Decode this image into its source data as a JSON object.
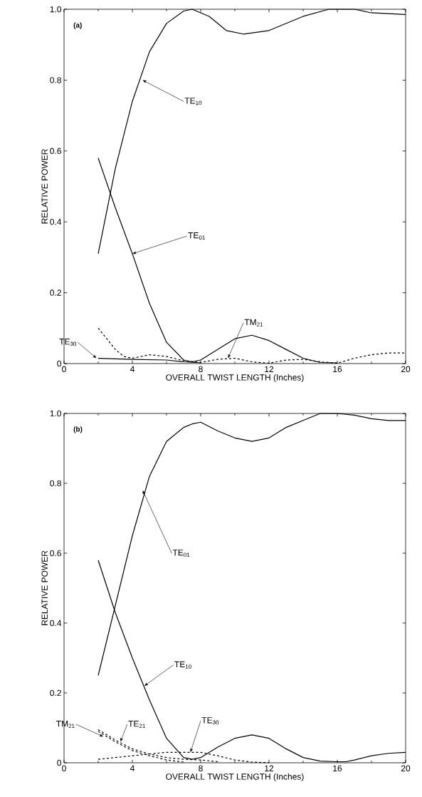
{
  "chart_data": [
    {
      "type": "line",
      "xlabel": "OVERALL TWIST LENGTH (Inches)",
      "ylabel": "RELATIVE POWER",
      "xlim": [
        0,
        20
      ],
      "ylim": [
        0,
        1.0
      ],
      "xticks": [
        0,
        4,
        8,
        12,
        16,
        20
      ],
      "yticks": [
        0,
        {
          "value": 0.2,
          "label": "0.2"
        },
        {
          "value": 0.4,
          "label": "0.4"
        },
        {
          "value": 0.6,
          "label": "0.6"
        },
        {
          "value": 0.8,
          "label": "0.8"
        },
        {
          "value": 1.0,
          "label": "1.0"
        }
      ],
      "series": [
        {
          "color": "#000000",
          "line_style": "solid",
          "x": [
            2,
            3,
            4,
            5,
            6,
            7,
            7.5,
            8.5,
            9.5,
            10.5,
            12,
            14,
            15.5,
            17,
            18,
            20
          ],
          "values": [
            0.31,
            0.55,
            0.74,
            0.88,
            0.96,
            0.995,
            1.0,
            0.98,
            0.94,
            0.93,
            0.94,
            0.98,
            1.0,
            1.0,
            0.99,
            0.985
          ]
        },
        {
          "color": "#000000",
          "line_style": "solid",
          "x": [
            2,
            3,
            4,
            5,
            6,
            7,
            7.5,
            8,
            9,
            10,
            11,
            12,
            13,
            14,
            15,
            16
          ],
          "values": [
            0.58,
            0.44,
            0.31,
            0.17,
            0.06,
            0.01,
            0.005,
            0.01,
            0.04,
            0.07,
            0.08,
            0.065,
            0.04,
            0.015,
            0.003,
            0.002
          ]
        },
        {
          "color": "#000000",
          "line_style": "dashed",
          "x": [
            2,
            2.5,
            3,
            3.5,
            4,
            5,
            6,
            7,
            8,
            9,
            10,
            11,
            12,
            13,
            14,
            15,
            16,
            17,
            18,
            19,
            20
          ],
          "values": [
            0.1,
            0.07,
            0.04,
            0.02,
            0.015,
            0.025,
            0.02,
            0.008,
            0.003,
            0.012,
            0.015,
            0.005,
            0.001,
            0.01,
            0.012,
            0.005,
            0.001,
            0.015,
            0.025,
            0.03,
            0.03
          ]
        },
        {
          "color": "#000000",
          "line_style": "solid",
          "x": [
            2,
            4,
            6,
            7,
            8
          ],
          "values": [
            0.015,
            0.012,
            0.01,
            0.005,
            0.002
          ]
        }
      ],
      "annotations": [
        "(a)",
        {
          "text": "TE$_{10}$",
          "x": 4.6,
          "y": 0.8
        },
        {
          "text": "TE$_{01}$",
          "x": 4.0,
          "y": 0.31
        },
        {
          "text": "TM$_{21}$",
          "x": 9.6,
          "y": 0.015
        },
        {
          "text": "TE$_{30}$",
          "x": 1.9,
          "y": 0.015
        }
      ]
    },
    {
      "type": "line",
      "xlabel": "OVERALL TWIST LENGTH (Inches)",
      "ylabel": "RELATIVE POWER",
      "xlim": [
        0,
        20
      ],
      "ylim": [
        0,
        1.0
      ],
      "xticks": [
        0,
        4,
        8,
        12,
        16,
        20
      ],
      "yticks": [
        0,
        {
          "value": 0.2,
          "label": "0.2"
        },
        {
          "value": 0.4,
          "label": "0.4"
        },
        {
          "value": 0.6,
          "label": "0.6"
        },
        {
          "value": 0.8,
          "label": "0.8"
        },
        {
          "value": 1.0,
          "label": "1.0"
        }
      ],
      "series": [
        {
          "color": "#000000",
          "line_style": "solid",
          "x": [
            2,
            3,
            4,
            5,
            6,
            7,
            7.5,
            8,
            9,
            10,
            11,
            12,
            13,
            14,
            15,
            16,
            17,
            18,
            19,
            20
          ],
          "values": [
            0.25,
            0.45,
            0.65,
            0.82,
            0.92,
            0.96,
            0.97,
            0.975,
            0.95,
            0.93,
            0.92,
            0.93,
            0.96,
            0.98,
            1.0,
            1.0,
            0.995,
            0.985,
            0.98,
            0.98
          ]
        },
        {
          "color": "#000000",
          "line_style": "solid",
          "x": [
            2,
            3,
            4,
            5,
            6,
            7,
            7.5,
            8,
            9,
            10,
            11,
            12,
            13,
            14,
            15,
            16,
            16.5,
            17,
            18,
            19,
            20
          ],
          "values": [
            0.58,
            0.43,
            0.3,
            0.18,
            0.07,
            0.015,
            0.01,
            0.015,
            0.045,
            0.07,
            0.08,
            0.07,
            0.04,
            0.015,
            0.005,
            0.003,
            0.003,
            0.008,
            0.02,
            0.027,
            0.03
          ]
        },
        {
          "color": "#000000",
          "line_style": "dashed",
          "x": [
            2,
            3,
            4,
            5,
            6,
            7
          ],
          "values": [
            0.09,
            0.06,
            0.035,
            0.02,
            0.008,
            0.002
          ]
        },
        {
          "color": "#000000",
          "line_style": "dashed",
          "x": [
            2,
            3,
            4,
            5,
            6,
            7,
            8,
            9
          ],
          "values": [
            0.095,
            0.065,
            0.04,
            0.025,
            0.015,
            0.01,
            0.008,
            0.003
          ]
        },
        {
          "color": "#000000",
          "line_style": "dashed",
          "x": [
            2,
            4,
            6,
            7,
            8,
            9,
            10,
            11,
            12
          ],
          "values": [
            0.01,
            0.02,
            0.03,
            0.03,
            0.03,
            0.02,
            0.008,
            0.002,
            0.0
          ]
        }
      ],
      "annotations": [
        "(b)",
        {
          "text": "TE$_{01}$",
          "x": 4.6,
          "y": 0.78
        },
        {
          "text": "TE$_{10}$",
          "x": 4.7,
          "y": 0.22
        },
        {
          "text": "TE$_{30}$",
          "x": 7.4,
          "y": 0.03
        },
        {
          "text": "TM$_{21}$",
          "x": 2.3,
          "y": 0.075
        },
        {
          "text": "TE$_{21}$",
          "x": 3.3,
          "y": 0.06
        }
      ]
    }
  ]
}
